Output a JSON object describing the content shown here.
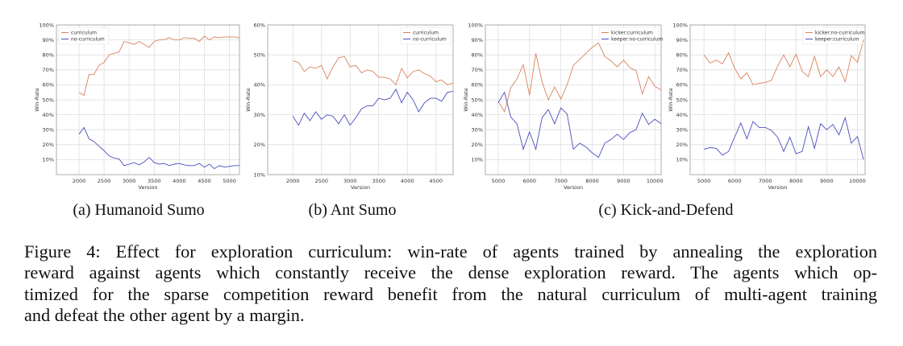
{
  "colors": {
    "orange": "#d9825f",
    "blue": "#4a4cc0",
    "grid": "#dddddd",
    "frame": "#999999"
  },
  "chart_data": [
    {
      "type": "line",
      "xlabel": "Version",
      "ylabel": "Win-Rate",
      "xlim": [
        1550,
        5200
      ],
      "ylim": [
        0,
        100
      ],
      "xticks": [
        2000,
        2500,
        3000,
        3500,
        4000,
        4500,
        5000
      ],
      "yticks": [
        10,
        20,
        30,
        40,
        50,
        60,
        70,
        80,
        90,
        100
      ],
      "ytick_suffix": "%",
      "grid": true,
      "legend": "top-left",
      "x": [
        2000,
        2100,
        2200,
        2300,
        2400,
        2500,
        2600,
        2700,
        2800,
        2900,
        3000,
        3100,
        3200,
        3300,
        3400,
        3500,
        3600,
        3700,
        3800,
        3900,
        4000,
        4100,
        4200,
        4300,
        4400,
        4500,
        4600,
        4700,
        4800,
        4900,
        5000,
        5100,
        5200
      ],
      "series": [
        {
          "name": "curriculum",
          "color": "orange",
          "values": [
            55,
            53,
            67,
            67,
            73,
            75,
            80,
            81,
            82,
            89,
            88,
            87,
            89,
            87,
            85,
            89,
            90,
            90,
            91.5,
            90,
            90,
            91.5,
            91,
            91,
            89,
            92.5,
            90,
            92,
            91.5,
            92,
            92,
            92,
            91.5
          ]
        },
        {
          "name": "no-curriculum",
          "color": "blue",
          "values": [
            27,
            31.5,
            24,
            22,
            19,
            16,
            12.5,
            11,
            10.5,
            6,
            7,
            8,
            6.5,
            8.5,
            11.5,
            8,
            7,
            7.5,
            6,
            7,
            7.5,
            6.5,
            6,
            6,
            7.5,
            5,
            7,
            4,
            6,
            5,
            5.5,
            6,
            6
          ]
        }
      ]
    },
    {
      "type": "line",
      "xlabel": "Version",
      "ylabel": "Win-Rate",
      "xlim": [
        1560,
        4800
      ],
      "ylim": [
        10,
        60
      ],
      "xticks": [
        2000,
        2500,
        3000,
        3500,
        4000,
        4500
      ],
      "yticks": [
        10,
        20,
        30,
        40,
        50,
        60
      ],
      "ytick_suffix": "%",
      "grid": true,
      "legend": "top-right",
      "x": [
        2000,
        2100,
        2200,
        2300,
        2400,
        2500,
        2600,
        2700,
        2800,
        2900,
        3000,
        3100,
        3200,
        3300,
        3400,
        3500,
        3600,
        3700,
        3800,
        3900,
        4000,
        4100,
        4200,
        4300,
        4400,
        4500,
        4600,
        4700,
        4800
      ],
      "series": [
        {
          "name": "curriculum",
          "color": "orange",
          "values": [
            48,
            47.5,
            44.5,
            46,
            45.5,
            46.5,
            42,
            46,
            49,
            49.5,
            46,
            46.5,
            44,
            45,
            44.5,
            42.5,
            42.5,
            42,
            40,
            45.5,
            42.3,
            44.4,
            45,
            43.7,
            43,
            41,
            41.6,
            40,
            40.6
          ]
        },
        {
          "name": "no-curriculum",
          "color": "blue",
          "values": [
            29.5,
            26.5,
            30.5,
            28,
            31,
            28.5,
            30,
            29.5,
            27,
            30,
            26.5,
            29,
            32,
            33,
            33,
            35.5,
            35,
            35.5,
            38.5,
            34,
            37.5,
            35,
            31,
            34,
            35.5,
            35.5,
            34.5,
            37.5,
            37.8
          ]
        }
      ]
    },
    {
      "type": "line",
      "xlabel": "Version",
      "ylabel": "Win-Rate",
      "xlim": [
        4590,
        10200
      ],
      "ylim": [
        0,
        100
      ],
      "xticks": [
        5000,
        6000,
        7000,
        8000,
        9000,
        10000
      ],
      "yticks": [
        10,
        20,
        30,
        40,
        50,
        60,
        70,
        80,
        90,
        100
      ],
      "ytick_suffix": "%",
      "grid": true,
      "legend": "top-right",
      "x": [
        5000,
        5200,
        5400,
        5600,
        5800,
        6000,
        6200,
        6400,
        6600,
        6800,
        7000,
        7200,
        7400,
        7600,
        7800,
        8000,
        8200,
        8400,
        8600,
        8800,
        9000,
        9200,
        9400,
        9600,
        9800,
        10000,
        10200
      ],
      "series": [
        {
          "name": "kicker:curriculum",
          "color": "orange",
          "values": [
            49,
            42,
            58,
            64,
            73.5,
            53,
            81,
            62,
            50,
            58.5,
            50.5,
            60,
            73,
            77,
            81,
            85,
            88,
            79,
            76,
            72,
            76.5,
            71.5,
            69.5,
            54,
            65.5,
            59,
            56.5
          ]
        },
        {
          "name": "keeper:no-curriculum",
          "color": "blue",
          "values": [
            48,
            55,
            38.5,
            34,
            17,
            28.5,
            17,
            38,
            43.5,
            34,
            44.5,
            40.5,
            17,
            21,
            18.5,
            14.5,
            11.5,
            21,
            23.5,
            27,
            23.5,
            28,
            30,
            41,
            33.5,
            37,
            34
          ]
        }
      ]
    },
    {
      "type": "line",
      "xlabel": "Version",
      "ylabel": "Win-Rate",
      "xlim": [
        4550,
        10250
      ],
      "ylim": [
        0,
        100
      ],
      "xticks": [
        5000,
        6000,
        7000,
        8000,
        9000,
        10000
      ],
      "yticks": [
        10,
        20,
        30,
        40,
        50,
        60,
        70,
        80,
        90,
        100
      ],
      "ytick_suffix": "%",
      "grid": true,
      "legend": "top-right",
      "x": [
        5000,
        5200,
        5400,
        5600,
        5800,
        6000,
        6200,
        6400,
        6600,
        6800,
        7000,
        7200,
        7400,
        7600,
        7800,
        8000,
        8200,
        8400,
        8600,
        8800,
        9000,
        9200,
        9400,
        9600,
        9800,
        10000,
        10200
      ],
      "series": [
        {
          "name": "kicker:no-curriculum",
          "color": "orange",
          "values": [
            80,
            74.5,
            76.5,
            74,
            81.5,
            71,
            64,
            68,
            60,
            61,
            61.5,
            63,
            72.5,
            80,
            72,
            80.5,
            69,
            65.5,
            79,
            65.5,
            70,
            65.5,
            72,
            62,
            79.5,
            75,
            90
          ]
        },
        {
          "name": "keeper:curriculum",
          "color": "blue",
          "values": [
            17,
            18,
            17.5,
            13,
            15.5,
            25,
            34.5,
            24,
            35.5,
            31.5,
            31.5,
            29.5,
            25,
            15.5,
            25,
            14,
            15.5,
            32,
            17.5,
            34,
            30,
            33.5,
            26.5,
            38,
            21,
            25.5,
            10
          ]
        }
      ]
    }
  ],
  "subcaptions": [
    "(a) Humanoid Sumo",
    "(b) Ant Sumo",
    "(c) Kick-and-Defend"
  ],
  "caption_lines": [
    "Figure 4: Effect for exploration curriculum: win-rate of agents trained by annealing the exploration",
    "reward against agents which constantly receive the dense exploration reward. The agents which op-",
    "timized for the sparse competition reward benefit from the natural curriculum of multi-agent training",
    "and defeat the other agent by a margin."
  ]
}
